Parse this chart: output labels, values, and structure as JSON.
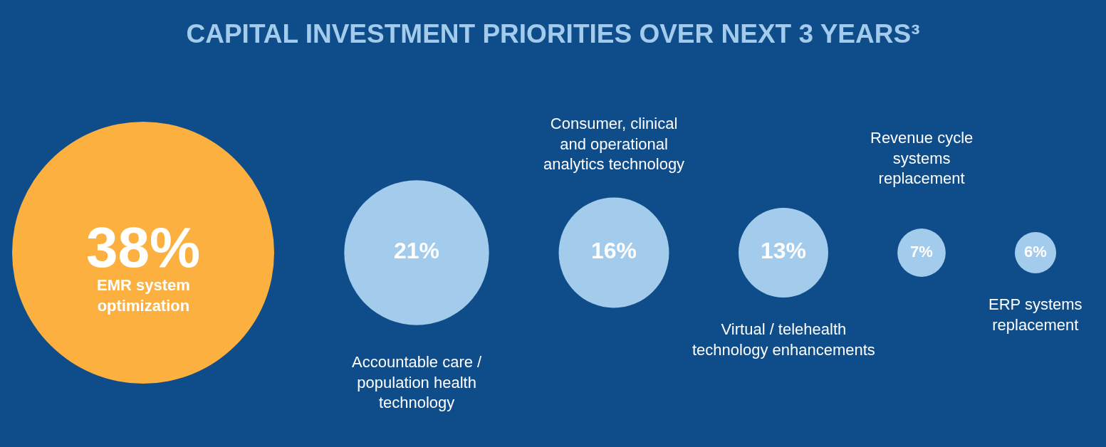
{
  "chart_data": {
    "type": "other",
    "title": "CAPITAL INVESTMENT PRIORITIES OVER NEXT 3 YEARS³",
    "categories": [
      "EMR system optimization",
      "Accountable care / population health technology",
      "Consumer, clinical and operational analytics technology",
      "Virtual / telehealth technology enhancements",
      "Revenue cycle systems replacement",
      "ERP systems replacement"
    ],
    "values": [
      38,
      21,
      16,
      13,
      7,
      6
    ],
    "value_labels": [
      "38%",
      "21%",
      "16%",
      "13%",
      "7%",
      "6%"
    ],
    "colors": [
      "#fbb040",
      "#a3cbec",
      "#a3cbec",
      "#a3cbec",
      "#a3cbec",
      "#a3cbec"
    ]
  }
}
